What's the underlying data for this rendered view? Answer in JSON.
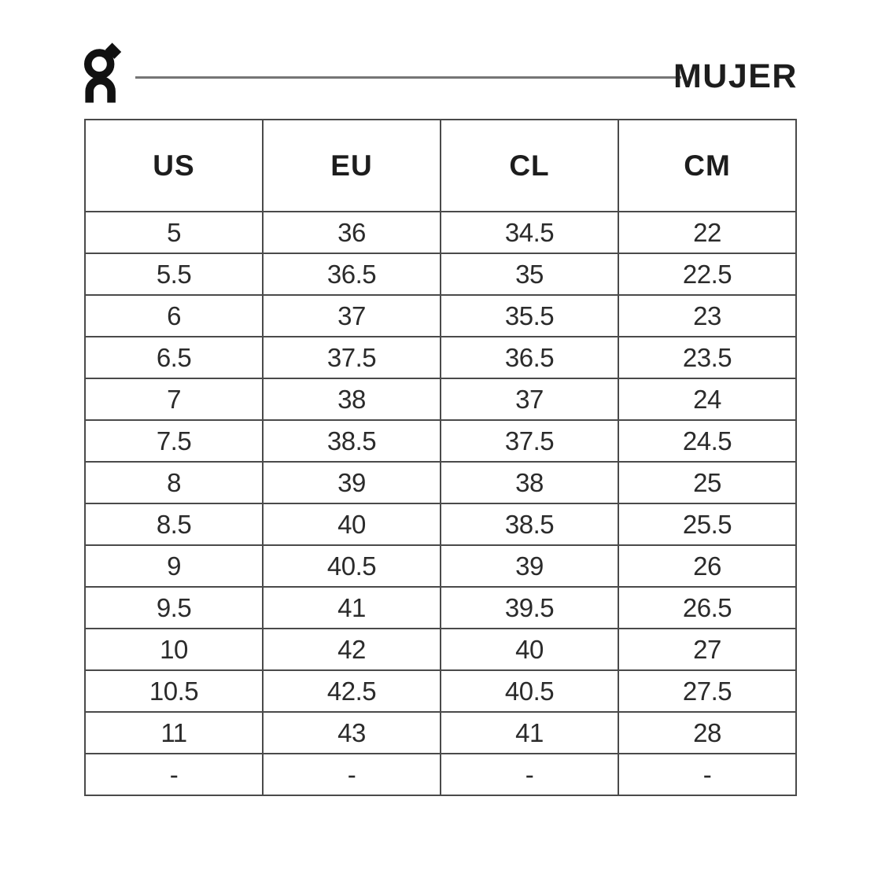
{
  "brand": {
    "logo_icon": "on-logo"
  },
  "header": {
    "title": "MUJER"
  },
  "table": {
    "columns": [
      "US",
      "EU",
      "CL",
      "CM"
    ],
    "rows": [
      [
        "5",
        "36",
        "34.5",
        "22"
      ],
      [
        "5.5",
        "36.5",
        "35",
        "22.5"
      ],
      [
        "6",
        "37",
        "35.5",
        "23"
      ],
      [
        "6.5",
        "37.5",
        "36.5",
        "23.5"
      ],
      [
        "7",
        "38",
        "37",
        "24"
      ],
      [
        "7.5",
        "38.5",
        "37.5",
        "24.5"
      ],
      [
        "8",
        "39",
        "38",
        "25"
      ],
      [
        "8.5",
        "40",
        "38.5",
        "25.5"
      ],
      [
        "9",
        "40.5",
        "39",
        "26"
      ],
      [
        "9.5",
        "41",
        "39.5",
        "26.5"
      ],
      [
        "10",
        "42",
        "40",
        "27"
      ],
      [
        "10.5",
        "42.5",
        "40.5",
        "27.5"
      ],
      [
        "11",
        "43",
        "41",
        "28"
      ],
      [
        "-",
        "-",
        "-",
        "-"
      ]
    ]
  },
  "colors": {
    "text": "#1d1d1d",
    "digits": "#2b2b2b",
    "table_border": "#4a4a4a",
    "divider_rule": "#757575",
    "background": "#ffffff"
  }
}
